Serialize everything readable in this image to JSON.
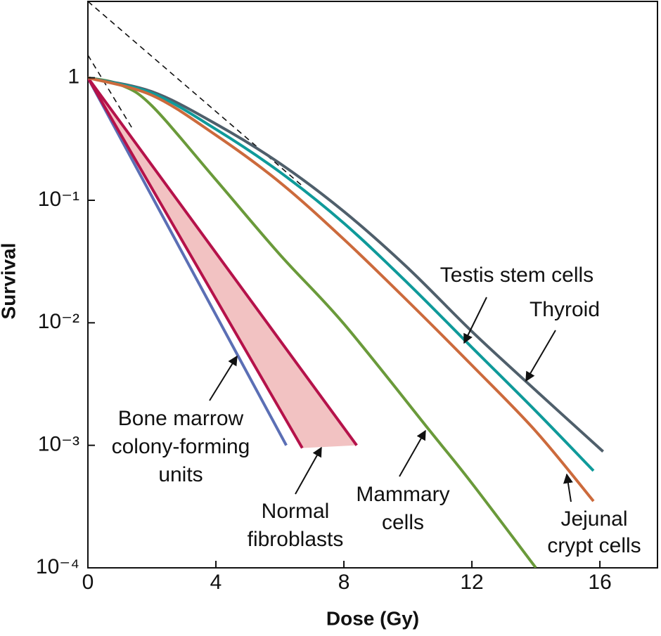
{
  "chart_data": {
    "type": "line",
    "x_label": "Dose (Gy)",
    "y_label": "Survival",
    "xlim": [
      0,
      17.8
    ],
    "xticks": [
      0,
      4,
      8,
      12,
      16
    ],
    "ylim": [
      0.0001,
      4.2
    ],
    "log_y": true,
    "yticks": [
      {
        "value": 0.0001,
        "label": "10⁻⁴"
      },
      {
        "value": 0.001,
        "label": "10⁻³"
      },
      {
        "value": 0.01,
        "label": "10⁻²"
      },
      {
        "value": 0.1,
        "label": "10⁻¹"
      },
      1
    ],
    "series": [
      {
        "name": [
          "Bone marrow",
          "colony-forming",
          "units"
        ],
        "color": "#5b6fb5",
        "x": [
          0,
          6.2
        ],
        "values": [
          1,
          0.001
        ]
      },
      {
        "name": [
          "Normal",
          "fibroblasts"
        ],
        "color": "#b5124a",
        "fill": "#f2c2c2",
        "x": [
          0,
          6.7
        ],
        "values": [
          1,
          0.00095
        ],
        "x_upper": [
          0,
          8.4
        ],
        "values_upper": [
          1,
          0.001
        ]
      },
      {
        "name": [
          "Mammary",
          "cells"
        ],
        "color": "#6a9a3a",
        "x": [
          0,
          1,
          2,
          4,
          6,
          8,
          10.7,
          12,
          14
        ],
        "values": [
          1,
          0.88,
          0.59,
          0.147,
          0.036,
          0.0098,
          0.0013,
          0.00049,
          0.0001
        ]
      },
      {
        "name": [
          "Thyroid"
        ],
        "color": "#4f5f6b",
        "x": [
          0,
          2,
          4,
          6,
          8,
          10,
          12,
          14,
          16.1
        ],
        "values": [
          1,
          0.77,
          0.42,
          0.2,
          0.081,
          0.028,
          0.0085,
          0.0028,
          0.00089
        ]
      },
      {
        "name": [
          "Testis stem cells"
        ],
        "color": "#0f9a9a",
        "x": [
          0,
          2,
          4,
          6,
          8,
          10,
          12,
          14,
          15.8
        ],
        "values": [
          1,
          0.75,
          0.38,
          0.17,
          0.065,
          0.021,
          0.0063,
          0.0019,
          0.00062
        ]
      },
      {
        "name": [
          "Jejunal",
          "crypt cells"
        ],
        "color": "#cc6a3c",
        "x": [
          0,
          2,
          4,
          6,
          8,
          10,
          12,
          14,
          15.8
        ],
        "values": [
          1,
          0.72,
          0.34,
          0.14,
          0.048,
          0.015,
          0.0045,
          0.0013,
          0.00035
        ]
      }
    ],
    "reference_lines": [
      {
        "x": [
          0,
          6.66
        ],
        "values": [
          4.2,
          0.134
        ]
      },
      {
        "x": [
          0,
          1.43
        ],
        "values": [
          1.53,
          0.37
        ]
      }
    ]
  }
}
